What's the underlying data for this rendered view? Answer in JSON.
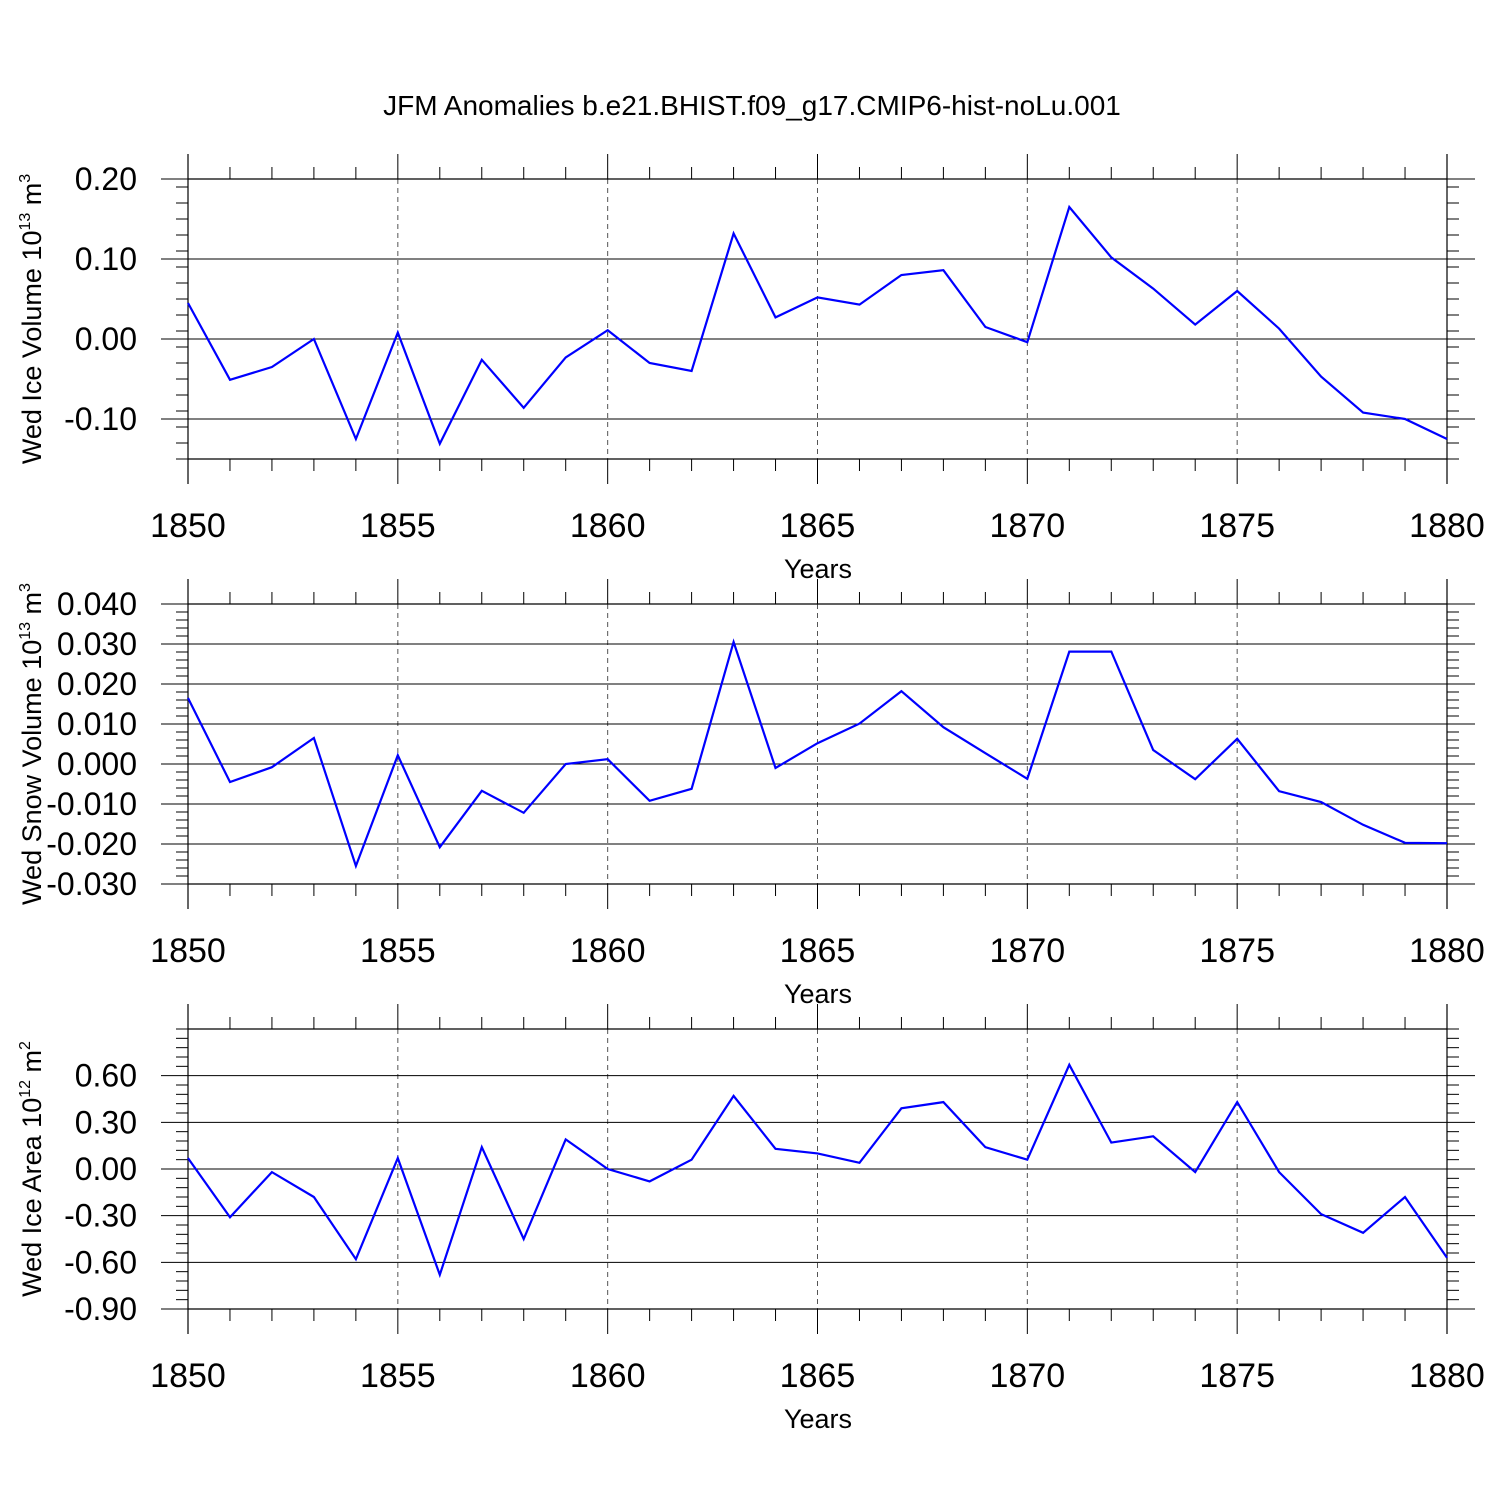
{
  "title": "JFM Anomalies b.e21.BHIST.f09_g17.CMIP6-hist-noLu.001",
  "colors": {
    "line": "#0000ff",
    "axis": "#000000",
    "grid": "#555555"
  },
  "chart_data": [
    {
      "type": "line",
      "name": "ice-volume",
      "ylabel": {
        "base": "Wed Ice Volume 10",
        "exp": "13",
        "unit": " m",
        "unit_exp": "3"
      },
      "xlabel": "Years",
      "xlim": [
        1850,
        1880
      ],
      "ylim": [
        -0.15,
        0.2
      ],
      "yticks": [
        -0.1,
        0.0,
        0.1,
        0.2
      ],
      "ytick_labels": [
        "-0.10",
        "0.00",
        "0.10",
        "0.20"
      ],
      "xticks": [
        1850,
        1855,
        1860,
        1865,
        1870,
        1875,
        1880
      ],
      "xtick_labels": [
        "1850",
        "1855",
        "1860",
        "1865",
        "1870",
        "1875",
        "1880"
      ],
      "x": [
        1850,
        1851,
        1852,
        1853,
        1854,
        1855,
        1856,
        1857,
        1858,
        1859,
        1860,
        1861,
        1862,
        1863,
        1864,
        1865,
        1866,
        1867,
        1868,
        1869,
        1870,
        1871,
        1872,
        1873,
        1874,
        1875,
        1876,
        1877,
        1878,
        1879,
        1880
      ],
      "values": [
        0.045,
        -0.051,
        -0.035,
        0.0,
        -0.125,
        0.008,
        -0.131,
        -0.026,
        -0.086,
        -0.023,
        0.011,
        -0.03,
        -0.04,
        0.132,
        0.027,
        0.052,
        0.043,
        0.08,
        0.086,
        0.015,
        -0.004,
        0.165,
        0.102,
        0.063,
        0.018,
        0.06,
        0.013,
        -0.047,
        -0.092,
        -0.1,
        -0.125
      ]
    },
    {
      "type": "line",
      "name": "snow-volume",
      "ylabel": {
        "base": "Wed Snow Volume 10",
        "exp": "13",
        "unit": " m",
        "unit_exp": "3"
      },
      "xlabel": "Years",
      "xlim": [
        1850,
        1880
      ],
      "ylim": [
        -0.03,
        0.04
      ],
      "yticks": [
        -0.03,
        -0.02,
        -0.01,
        0.0,
        0.01,
        0.02,
        0.03,
        0.04
      ],
      "ytick_labels": [
        "-0.030",
        "-0.020",
        "-0.010",
        "0.000",
        "0.010",
        "0.020",
        "0.030",
        "0.040"
      ],
      "xticks": [
        1850,
        1855,
        1860,
        1865,
        1870,
        1875,
        1880
      ],
      "xtick_labels": [
        "1850",
        "1855",
        "1860",
        "1865",
        "1870",
        "1875",
        "1880"
      ],
      "x": [
        1850,
        1851,
        1852,
        1853,
        1854,
        1855,
        1856,
        1857,
        1858,
        1859,
        1860,
        1861,
        1862,
        1863,
        1864,
        1865,
        1866,
        1867,
        1868,
        1869,
        1870,
        1871,
        1872,
        1873,
        1874,
        1875,
        1876,
        1877,
        1878,
        1879,
        1880
      ],
      "values": [
        0.0165,
        -0.0045,
        -0.0008,
        0.0065,
        -0.0255,
        0.0022,
        -0.0208,
        -0.0067,
        -0.0122,
        0.0,
        0.0012,
        -0.0092,
        -0.0062,
        0.0305,
        -0.001,
        0.0052,
        0.0101,
        0.0182,
        0.0092,
        0.0027,
        -0.0037,
        0.0281,
        0.0281,
        0.0035,
        -0.0038,
        0.0063,
        -0.0068,
        -0.0095,
        -0.0152,
        -0.0197,
        -0.0198
      ]
    },
    {
      "type": "line",
      "name": "ice-area",
      "ylabel": {
        "base": "Wed Ice Area 10",
        "exp": "12",
        "unit": " m",
        "unit_exp": "2"
      },
      "xlabel": "Years",
      "xlim": [
        1850,
        1880
      ],
      "ylim": [
        -0.9,
        0.9
      ],
      "yticks": [
        -0.9,
        -0.6,
        -0.3,
        0.0,
        0.3,
        0.6
      ],
      "ytick_labels": [
        "-0.90",
        "-0.60",
        "-0.30",
        "0.00",
        "0.30",
        "0.60"
      ],
      "xticks": [
        1850,
        1855,
        1860,
        1865,
        1870,
        1875,
        1880
      ],
      "xtick_labels": [
        "1850",
        "1855",
        "1860",
        "1865",
        "1870",
        "1875",
        "1880"
      ],
      "x": [
        1850,
        1851,
        1852,
        1853,
        1854,
        1855,
        1856,
        1857,
        1858,
        1859,
        1860,
        1861,
        1862,
        1863,
        1864,
        1865,
        1866,
        1867,
        1868,
        1869,
        1870,
        1871,
        1872,
        1873,
        1874,
        1875,
        1876,
        1877,
        1878,
        1879,
        1880
      ],
      "values": [
        0.07,
        -0.31,
        -0.02,
        -0.18,
        -0.58,
        0.07,
        -0.68,
        0.14,
        -0.45,
        0.19,
        0.0,
        -0.08,
        0.06,
        0.47,
        0.13,
        0.1,
        0.04,
        0.39,
        0.43,
        0.14,
        0.06,
        0.67,
        0.17,
        0.21,
        -0.02,
        0.43,
        -0.02,
        -0.29,
        -0.41,
        -0.18,
        -0.57
      ]
    }
  ]
}
